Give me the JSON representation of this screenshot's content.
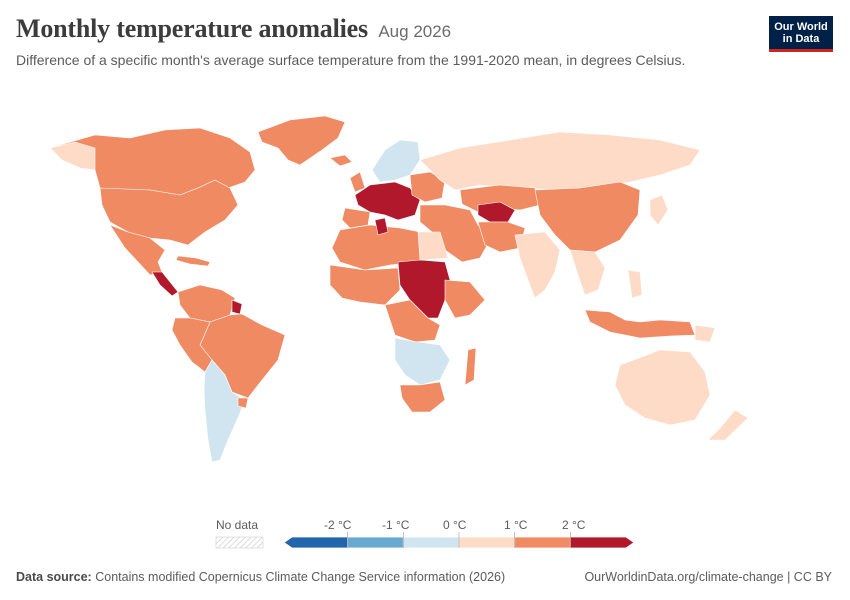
{
  "header": {
    "title": "Monthly temperature anomalies",
    "date": "Aug 2026",
    "subtitle": "Difference of a specific month's average surface temperature from the 1991-2020 mean, in degrees Celsius.",
    "logo_line1": "Our World",
    "logo_line2": "in Data"
  },
  "legend": {
    "no_data_label": "No data",
    "ticks": [
      "-2 °C",
      "-1 °C",
      "0 °C",
      "1 °C",
      "2 °C"
    ],
    "colors": [
      "#2166ac",
      "#67a9cf",
      "#d1e5f0",
      "#fddbc7",
      "#ef8a62",
      "#b2182b"
    ]
  },
  "footer": {
    "source_label": "Data source:",
    "source_text": "Contains modified Copernicus Climate Change Service information (2026)",
    "right_text": "OurWorldinData.org/climate-change | CC BY"
  },
  "colors": {
    "very_warm": "#b2182b",
    "warm": "#ef8a62",
    "slightly_warm": "#fddbc7",
    "slightly_cool": "#d1e5f0",
    "border": "#ffffff",
    "brand": "#002147",
    "brand_accent": "#ce261e"
  }
}
